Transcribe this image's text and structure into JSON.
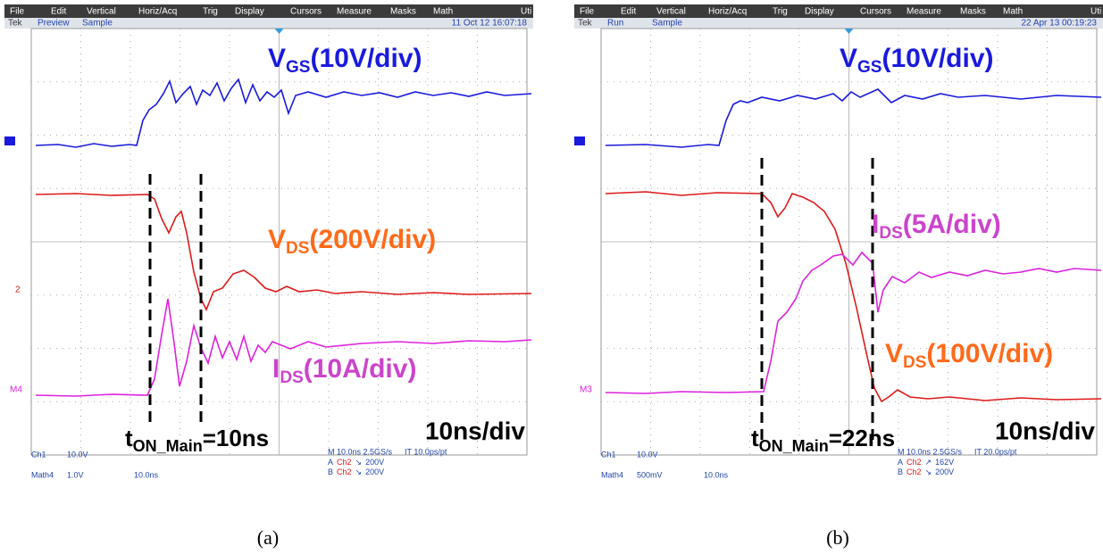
{
  "menu": [
    "File",
    "Edit",
    "Vertical",
    "Horiz/Acq",
    "Trig",
    "Display",
    "Cursors",
    "Measure",
    "Masks",
    "Math",
    "Uti"
  ],
  "panels": [
    {
      "status": {
        "brand": "Tek",
        "state": "Preview",
        "acquisition": "Sample",
        "datetime": "11 Oct 12 16:07:18"
      },
      "markers": {
        "ch2": "2",
        "math": "M4"
      },
      "labels": {
        "vgs": {
          "main": "V",
          "sub": "GS",
          "rest": "(10V/div)"
        },
        "vds": {
          "main": "V",
          "sub": "DS",
          "rest": "(200V/div)"
        },
        "ids": {
          "main": "I",
          "sub": "DS",
          "rest": "(10A/div)"
        }
      },
      "timing": {
        "main": "t",
        "sub": "ON_Main",
        "rest": "=10ns"
      },
      "timebase": "10ns/div",
      "readout": {
        "ch1": "Ch1",
        "ch1_scale": "10.0V",
        "math": "Math4",
        "math_scale": "1.0V",
        "math_time": "10.0ns",
        "horizontal": "M 10.0ns 2.5GS/s",
        "record": "IT 10.0ps/pt",
        "trig_a": {
          "label": "A",
          "source": "Ch2",
          "slope": "↘",
          "level": "200V"
        },
        "trig_b": {
          "label": "B",
          "source": "Ch2",
          "slope": "↘",
          "level": "200V"
        }
      },
      "caption": "(a)"
    },
    {
      "status": {
        "brand": "Tek",
        "state": "Run",
        "acquisition": "Sample",
        "datetime": "22 Apr 13 00:19:23"
      },
      "markers": {
        "math": "M3"
      },
      "labels": {
        "vgs": {
          "main": "V",
          "sub": "GS",
          "rest": "(10V/div)"
        },
        "ids": {
          "main": "I",
          "sub": "DS",
          "rest": "(5A/div)"
        },
        "vds": {
          "main": "V",
          "sub": "DS",
          "rest": "(100V/div)"
        }
      },
      "timing": {
        "main": "t",
        "sub": "ON_Main",
        "rest": "=22ns"
      },
      "timebase": "10ns/div",
      "readout": {
        "ch1": "Ch1",
        "ch1_scale": "10.0V",
        "math": "Math4",
        "math_scale": "500mV",
        "math_time": "10.0ns",
        "horizontal": "M 10.0ns 2.5GS/s",
        "record": "IT 20.0ps/pt",
        "trig_a": {
          "label": "A",
          "source": "Ch2",
          "slope": "↗",
          "level": "162V"
        },
        "trig_b": {
          "label": "B",
          "source": "Ch2",
          "slope": "↘",
          "level": "200V"
        }
      },
      "caption": "(b)"
    }
  ]
}
